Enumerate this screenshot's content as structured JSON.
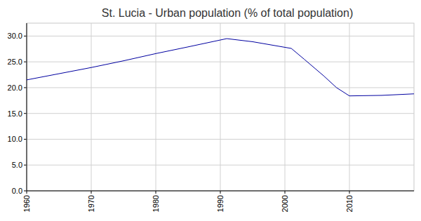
{
  "chart_data": {
    "type": "line",
    "title": "St. Lucia - Urban population (% of total population)",
    "x": [
      1960,
      1965,
      1970,
      1975,
      1980,
      1985,
      1991,
      1995,
      2001,
      2003,
      2006,
      2008,
      2010,
      2015,
      2020
    ],
    "values": [
      21.5,
      22.7,
      23.9,
      25.2,
      26.6,
      27.9,
      29.5,
      28.9,
      27.6,
      25.5,
      22.3,
      20.0,
      18.4,
      18.5,
      18.8
    ],
    "color": "#0000a0",
    "xlim": [
      1960,
      2020
    ],
    "xticks": [
      1960,
      1970,
      1980,
      1990,
      2000,
      2010
    ],
    "ylim": [
      0,
      32.5
    ],
    "yticks": [
      {
        "value": 0,
        "label": "0.0"
      },
      {
        "value": 5,
        "label": "5.0"
      },
      {
        "value": 10,
        "label": "10.0"
      },
      {
        "value": 15,
        "label": "15.0"
      },
      {
        "value": 20,
        "label": "20.0"
      },
      {
        "value": 25,
        "label": "25.0"
      },
      {
        "value": 30,
        "label": "30.0"
      }
    ],
    "grid": true
  }
}
